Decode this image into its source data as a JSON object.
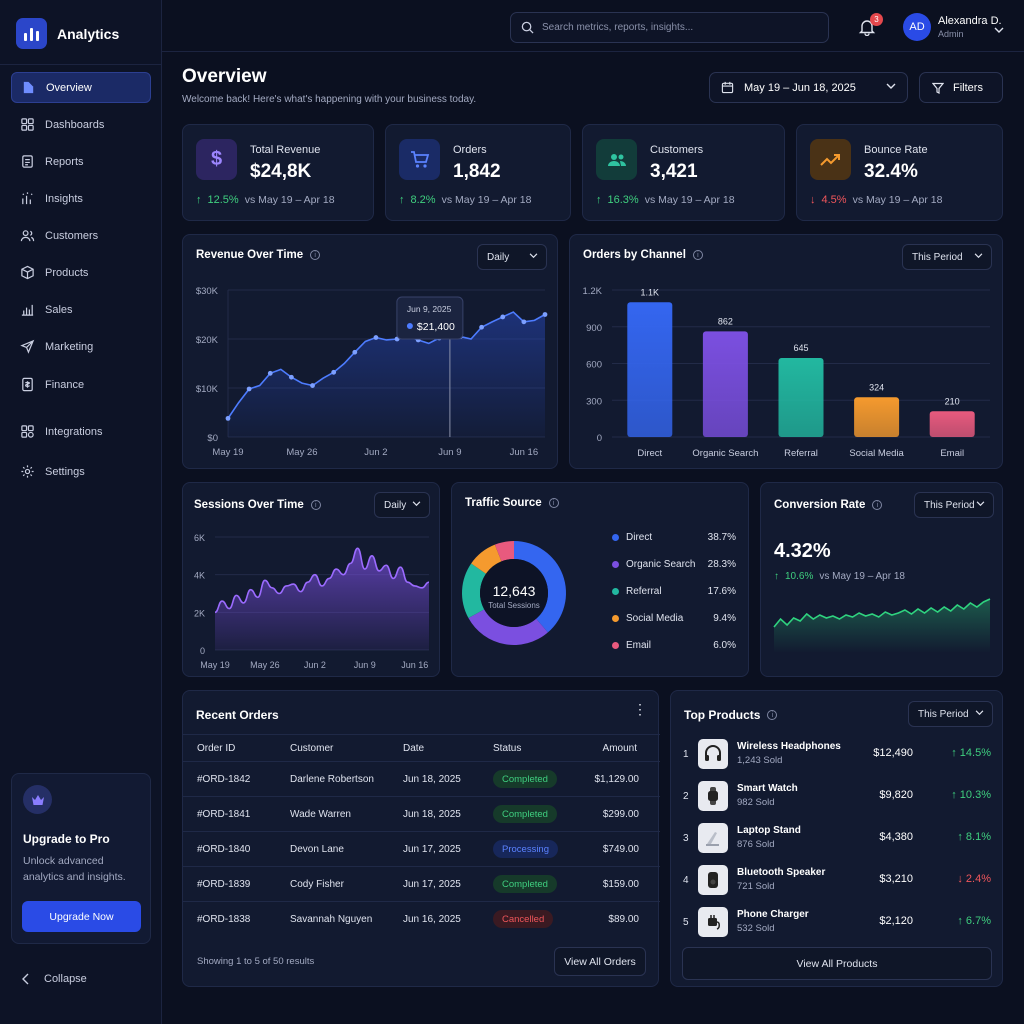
{
  "app": {
    "title": "Analytics"
  },
  "sidebar": {
    "items": [
      {
        "label": "Overview",
        "icon": "overview-icon"
      },
      {
        "label": "Dashboards",
        "icon": "grid-icon"
      },
      {
        "label": "Reports",
        "icon": "document-icon"
      },
      {
        "label": "Insights",
        "icon": "insights-icon"
      },
      {
        "label": "Customers",
        "icon": "users-icon"
      },
      {
        "label": "Products",
        "icon": "box-icon"
      },
      {
        "label": "Sales",
        "icon": "bar-chart-icon"
      },
      {
        "label": "Marketing",
        "icon": "send-icon"
      },
      {
        "label": "Finance",
        "icon": "finance-icon"
      },
      {
        "label": "Integrations",
        "icon": "puzzle-icon"
      },
      {
        "label": "Settings",
        "icon": "gear-icon"
      }
    ],
    "active": "Overview",
    "upgrade": {
      "title": "Upgrade to Pro",
      "text": "Unlock advanced analytics and insights.",
      "button": "Upgrade Now"
    },
    "collapse_label": "Collapse"
  },
  "header": {
    "search_placeholder": "Search metrics, reports, insights...",
    "notifications": "3",
    "user": {
      "initials": "AD",
      "name": "Alexandra D.",
      "role": "Admin"
    }
  },
  "page": {
    "title": "Overview",
    "subtitle": "Welcome back! Here's what's happening with your business today.",
    "date_range": "May 19 – Jun 18, 2025",
    "filters_label": "Filters"
  },
  "kpis": [
    {
      "label": "Total Revenue",
      "value": "$24,8K",
      "delta": "12.5%",
      "direction": "up",
      "compare": "vs May 19 – Apr 18",
      "icon": "dollar-icon",
      "color": "#7c5cff"
    },
    {
      "label": "Orders",
      "value": "1,842",
      "delta": "8.2%",
      "direction": "up",
      "compare": "vs May 19 – Apr 18",
      "icon": "cart-icon",
      "color": "#3b6bff"
    },
    {
      "label": "Customers",
      "value": "3,421",
      "delta": "16.3%",
      "direction": "up",
      "compare": "vs May 19 – Apr 18",
      "icon": "users-icon",
      "color": "#2fc3a0"
    },
    {
      "label": "Bounce Rate",
      "value": "32.4%",
      "delta": "4.5%",
      "direction": "down",
      "compare": "vs May 19 – Apr 18",
      "icon": "trend-icon",
      "color": "#f59a2e"
    }
  ],
  "revenue_chart": {
    "title": "Revenue Over Time",
    "period": "Daily",
    "tooltip": {
      "date": "Jun 9, 2025",
      "value": "$21,400"
    },
    "y_ticks": [
      "$30K",
      "$20K",
      "$10K",
      "$0"
    ],
    "x_ticks": [
      "May 19",
      "May 26",
      "Jun 2",
      "Jun 9",
      "Jun 16"
    ]
  },
  "channel_chart": {
    "title": "Orders by Channel",
    "period": "This Period",
    "y_ticks": [
      "1.2K",
      "900",
      "600",
      "300",
      "0"
    ]
  },
  "sessions_chart": {
    "title": "Sessions Over Time",
    "period": "Daily",
    "y_ticks": [
      "6K",
      "4K",
      "2K",
      "0"
    ],
    "x_ticks": [
      "May 19",
      "May 26",
      "Jun 2",
      "Jun 9",
      "Jun 16"
    ]
  },
  "traffic": {
    "title": "Traffic Source",
    "total": "12,643",
    "total_label": "Total Sessions",
    "sources": [
      {
        "name": "Direct",
        "pct": "38.7%",
        "value": 38.7,
        "color": "#3466f0"
      },
      {
        "name": "Organic Search",
        "pct": "28.3%",
        "value": 28.3,
        "color": "#7b4fe0"
      },
      {
        "name": "Referral",
        "pct": "17.6%",
        "value": 17.6,
        "color": "#22b8a0"
      },
      {
        "name": "Social Media",
        "pct": "9.4%",
        "value": 9.4,
        "color": "#f59a2e"
      },
      {
        "name": "Email",
        "pct": "6.0%",
        "value": 6.0,
        "color": "#e85a7e"
      }
    ]
  },
  "conversion": {
    "title": "Conversion Rate",
    "period": "This Period",
    "value": "4.32%",
    "delta": "10.6%",
    "compare": "vs May 19 – Apr 18"
  },
  "orders": {
    "title": "Recent Orders",
    "columns": [
      "Order ID",
      "Customer",
      "Date",
      "Status",
      "Amount"
    ],
    "rows": [
      {
        "id": "#ORD-1842",
        "customer": "Darlene Robertson",
        "date": "Jun 18, 2025",
        "status": "Completed",
        "amount": "$1,129.00"
      },
      {
        "id": "#ORD-1841",
        "customer": "Wade Warren",
        "date": "Jun 18, 2025",
        "status": "Completed",
        "amount": "$299.00"
      },
      {
        "id": "#ORD-1840",
        "customer": "Devon Lane",
        "date": "Jun 17, 2025",
        "status": "Processing",
        "amount": "$749.00"
      },
      {
        "id": "#ORD-1839",
        "customer": "Cody Fisher",
        "date": "Jun 17, 2025",
        "status": "Completed",
        "amount": "$159.00"
      },
      {
        "id": "#ORD-1838",
        "customer": "Savannah Nguyen",
        "date": "Jun 16, 2025",
        "status": "Cancelled",
        "amount": "$89.00"
      }
    ],
    "footer": "Showing 1 to 5 of 50 results",
    "view_all": "View All Orders"
  },
  "products": {
    "title": "Top Products",
    "period": "This Period",
    "items": [
      {
        "rank": "1",
        "name": "Wireless Headphones",
        "sold": "1,243 Sold",
        "revenue": "$12,490",
        "delta": "14.5%",
        "direction": "up",
        "icon": "headphones-icon"
      },
      {
        "rank": "2",
        "name": "Smart Watch",
        "sold": "982 Sold",
        "revenue": "$9,820",
        "delta": "10.3%",
        "direction": "up",
        "icon": "watch-icon"
      },
      {
        "rank": "3",
        "name": "Laptop Stand",
        "sold": "876 Sold",
        "revenue": "$4,380",
        "delta": "8.1%",
        "direction": "up",
        "icon": "laptop-stand-icon"
      },
      {
        "rank": "4",
        "name": "Bluetooth Speaker",
        "sold": "721 Sold",
        "revenue": "$3,210",
        "delta": "2.4%",
        "direction": "down",
        "icon": "speaker-icon"
      },
      {
        "rank": "5",
        "name": "Phone Charger",
        "sold": "532 Sold",
        "revenue": "$2,120",
        "delta": "6.7%",
        "direction": "up",
        "icon": "charger-icon"
      }
    ],
    "view_all": "View All Products"
  },
  "chart_data": [
    {
      "type": "area",
      "title": "Revenue Over Time",
      "x": [
        "May 19",
        "May 20",
        "May 21",
        "May 22",
        "May 23",
        "May 24",
        "May 25",
        "May 26",
        "May 27",
        "May 28",
        "May 29",
        "May 30",
        "May 31",
        "Jun 1",
        "Jun 2",
        "Jun 3",
        "Jun 4",
        "Jun 5",
        "Jun 6",
        "Jun 7",
        "Jun 8",
        "Jun 9",
        "Jun 10",
        "Jun 11",
        "Jun 12",
        "Jun 13",
        "Jun 14",
        "Jun 15",
        "Jun 16",
        "Jun 17",
        "Jun 18"
      ],
      "values": [
        3800,
        7000,
        9800,
        10500,
        13000,
        13800,
        12200,
        11000,
        10500,
        12000,
        13200,
        15000,
        17300,
        19500,
        20300,
        19800,
        20000,
        20500,
        19800,
        19100,
        20200,
        21400,
        20500,
        20000,
        22400,
        23500,
        24500,
        25500,
        23500,
        23800,
        25000
      ],
      "ylim": [
        0,
        30000
      ]
    },
    {
      "type": "bar",
      "title": "Orders by Channel",
      "categories": [
        "Direct",
        "Organic Search",
        "Referral",
        "Social Media",
        "Email"
      ],
      "values": [
        1100,
        862,
        645,
        324,
        210
      ],
      "labels": [
        "1.1K",
        "862",
        "645",
        "324",
        "210"
      ],
      "colors": [
        "#3466f0",
        "#7b4fe0",
        "#22b8a0",
        "#f59a2e",
        "#e85a7e"
      ],
      "ylim": [
        0,
        1200
      ]
    },
    {
      "type": "area",
      "title": "Sessions Over Time",
      "x": [
        "May 19",
        "May 20",
        "May 21",
        "May 22",
        "May 23",
        "May 24",
        "May 25",
        "May 26",
        "May 27",
        "May 28",
        "May 29",
        "May 30",
        "May 31",
        "Jun 1",
        "Jun 2",
        "Jun 3",
        "Jun 4",
        "Jun 5",
        "Jun 6",
        "Jun 7",
        "Jun 8",
        "Jun 9",
        "Jun 10",
        "Jun 11",
        "Jun 12",
        "Jun 13",
        "Jun 14",
        "Jun 15",
        "Jun 16",
        "Jun 17",
        "Jun 18"
      ],
      "values": [
        2000,
        2600,
        2200,
        2900,
        2500,
        3200,
        2800,
        3700,
        3300,
        3000,
        3400,
        3500,
        3100,
        3600,
        4000,
        3400,
        3800,
        4300,
        4000,
        4600,
        5400,
        4300,
        5000,
        4200,
        4500,
        3800,
        4400,
        3600,
        3400,
        3300,
        3600
      ],
      "ylim": [
        0,
        6000
      ]
    },
    {
      "type": "pie",
      "title": "Traffic Source",
      "categories": [
        "Direct",
        "Organic Search",
        "Referral",
        "Social Media",
        "Email"
      ],
      "values": [
        38.7,
        28.3,
        17.6,
        9.4,
        6.0
      ]
    },
    {
      "type": "area",
      "title": "Conversion Rate",
      "values": [
        2.6,
        3.4,
        2.8,
        3.5,
        3.2,
        3.9,
        3.4,
        3.8,
        3.5,
        3.7,
        3.4,
        3.8,
        3.6,
        4.0,
        3.7,
        3.9,
        3.6,
        4.1,
        3.8,
        4.0,
        4.3,
        3.9,
        4.4,
        4.0,
        4.5,
        4.1,
        4.6,
        4.2,
        4.8,
        4.4,
        5.0,
        4.6,
        5.1,
        5.4
      ],
      "ylim": [
        0,
        7
      ]
    }
  ]
}
